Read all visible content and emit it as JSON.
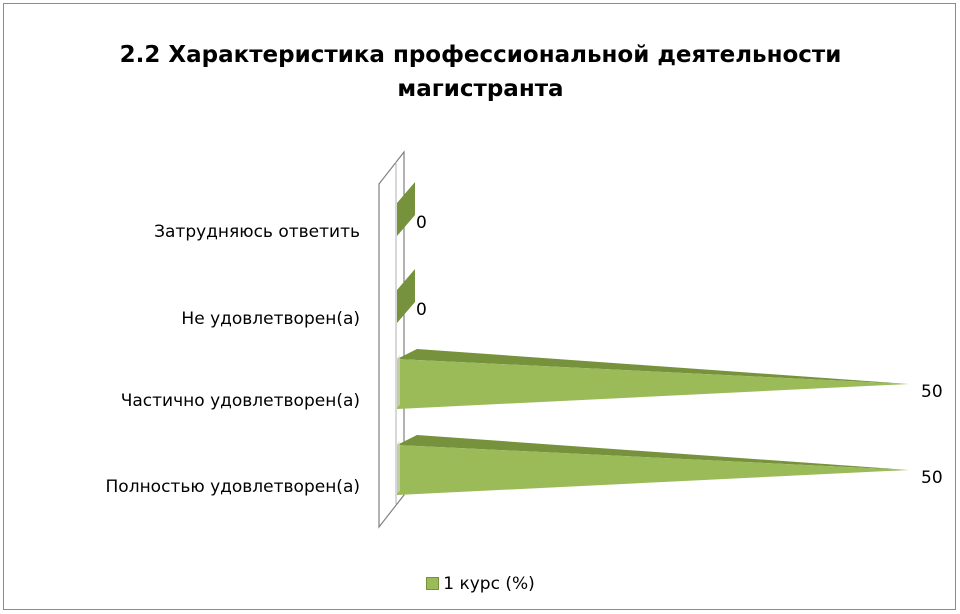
{
  "chart_data": {
    "type": "bar",
    "orientation": "horizontal",
    "style": "3d-cone",
    "title": "2.2 Характеристика профессиональной деятельности магистранта",
    "title_lines": [
      "2.2 Характеристика профессиональной деятельности",
      "магистранта"
    ],
    "categories": [
      "Затрудняюсь ответить",
      "Не удовлетворен(а)",
      "Частично удовлетворен(а)",
      "Полностью удовлетворен(а)"
    ],
    "series": [
      {
        "name": "1 курс (%)",
        "values": [
          0,
          0,
          50,
          50
        ],
        "color": "#9bbb59"
      }
    ],
    "data_labels": [
      "0",
      "0",
      "50",
      "50"
    ],
    "xlim": [
      0,
      50
    ],
    "grid": false,
    "legend": "bottom"
  }
}
